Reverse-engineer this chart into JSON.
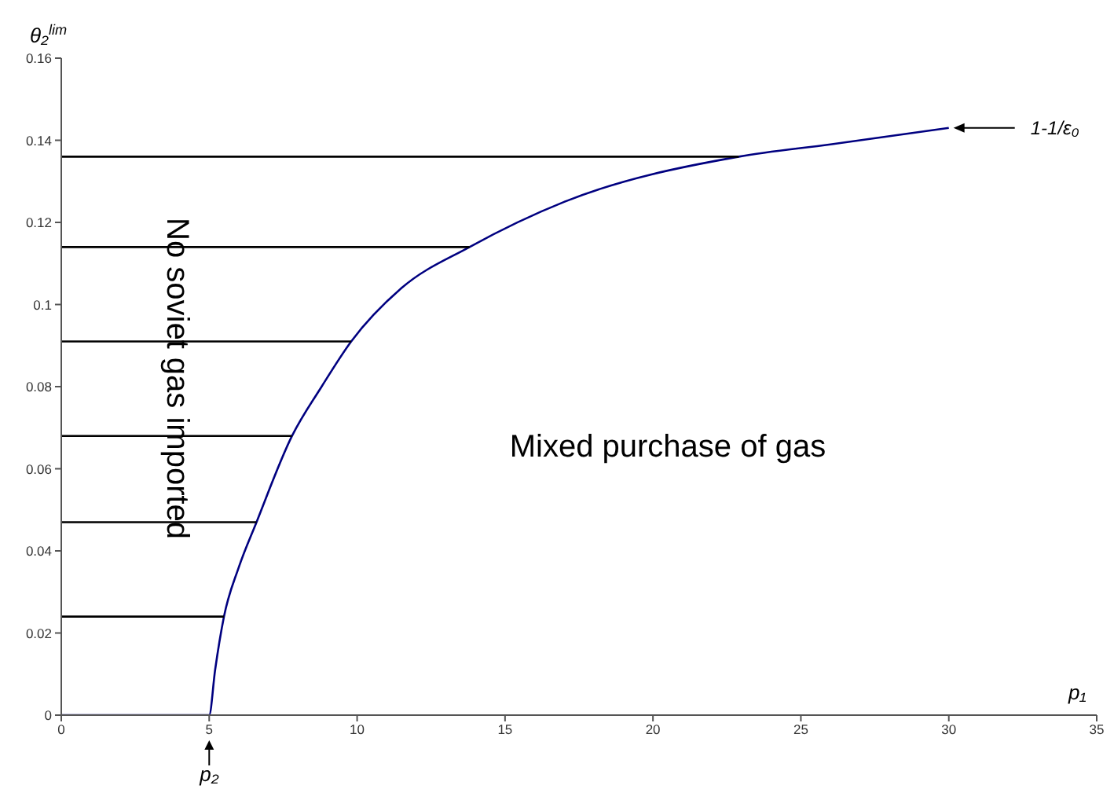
{
  "chart_data": {
    "type": "line",
    "xlabel": "p₁",
    "ylabel": "θ₂$^{lim}$",
    "marker": "none",
    "line_style": "solid",
    "xlim": [
      0,
      35
    ],
    "ylim": [
      0,
      0.16
    ],
    "xticks": [
      0,
      5,
      10,
      15,
      20,
      25,
      30,
      35
    ],
    "yticks": [
      0,
      0.02,
      0.04,
      0.06,
      0.08,
      0.1,
      0.12,
      0.14,
      0.16
    ],
    "series": [
      {
        "color": "#000080",
        "x": [
          0,
          5,
          5.2,
          5.5,
          6,
          6.6,
          7.8,
          8.8,
          9.8,
          11.5,
          13.8,
          17,
          22.9,
          26,
          30
        ],
        "values": [
          0,
          0,
          0.011,
          0.024,
          0.036,
          0.047,
          0.068,
          0.08,
          0.091,
          0.104,
          0.114,
          0.125,
          0.136,
          0.139,
          0.143
        ]
      },
      {
        "color": "#000000",
        "x": [
          0,
          5.5
        ],
        "values": [
          0.024,
          0.024
        ]
      },
      {
        "color": "#000000",
        "x": [
          0,
          6.6
        ],
        "values": [
          0.047,
          0.047
        ]
      },
      {
        "color": "#000000",
        "x": [
          0,
          7.8
        ],
        "values": [
          0.068,
          0.068
        ]
      },
      {
        "color": "#000000",
        "x": [
          0,
          9.8
        ],
        "values": [
          0.091,
          0.091
        ]
      },
      {
        "color": "#000000",
        "x": [
          0,
          13.8
        ],
        "values": [
          0.114,
          0.114
        ]
      },
      {
        "color": "#000000",
        "x": [
          0,
          22.9
        ],
        "values": [
          0.136,
          0.136
        ]
      }
    ],
    "annotations": [
      {
        "text": "p₂",
        "x": 5,
        "y": 0
      },
      "1-1/ε₀",
      "No soviet gas imported",
      "Mixed purchase of gas"
    ]
  }
}
